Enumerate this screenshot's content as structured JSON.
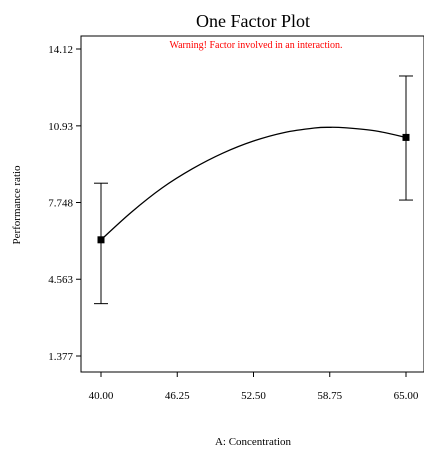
{
  "chart_data": {
    "type": "line",
    "title": "One Factor Plot",
    "annotation": "Warning! Factor involved in an interaction.",
    "xlabel": "A: Concentration",
    "ylabel": "Performance ratio",
    "x_ticks": [
      "40.00",
      "46.25",
      "52.50",
      "58.75",
      "65.00"
    ],
    "y_ticks": [
      "1.377",
      "4.563",
      "7.748",
      "10.93",
      "14.12"
    ],
    "xlim": [
      40,
      65
    ],
    "ylim": [
      0.3,
      15.2
    ],
    "grid": false,
    "curve": {
      "x": [
        40,
        42.5,
        45,
        47.5,
        50,
        52.5,
        55,
        57.5,
        58.75,
        60,
        62.5,
        65
      ],
      "y": [
        6.2,
        7.35,
        8.35,
        9.15,
        9.8,
        10.3,
        10.65,
        10.84,
        10.87,
        10.85,
        10.72,
        10.45
      ]
    },
    "points": [
      {
        "x": 40,
        "y": 6.2,
        "lower": 3.55,
        "upper": 8.55
      },
      {
        "x": 65,
        "y": 10.45,
        "lower": 7.85,
        "upper": 13.0
      }
    ]
  }
}
